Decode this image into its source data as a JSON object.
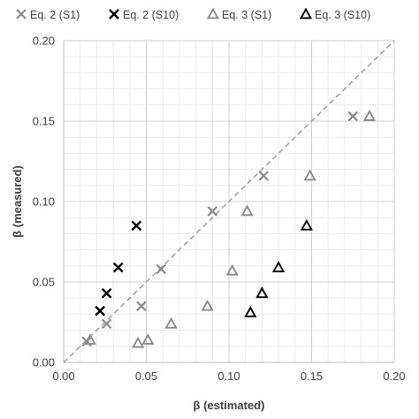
{
  "chart_data": {
    "type": "scatter",
    "xlabel": "β (estimated)",
    "ylabel": "β (measured)",
    "xlim": [
      0,
      0.2
    ],
    "ylim": [
      0,
      0.2
    ],
    "x_ticks": [
      "0.00",
      "0.05",
      "0.10",
      "0.15",
      "0.20"
    ],
    "y_ticks": [
      "0.00",
      "0.05",
      "0.10",
      "0.15",
      "0.20"
    ],
    "grid": true,
    "minor_grid": true,
    "legend_position": "top",
    "reference_line": "y = x (dashed)",
    "series": [
      {
        "name": "Eq. 2 (S1)",
        "marker": "x",
        "color": "#8c8c8c",
        "points": [
          [
            0.014,
            0.013
          ],
          [
            0.026,
            0.024
          ],
          [
            0.047,
            0.035
          ],
          [
            0.059,
            0.058
          ],
          [
            0.09,
            0.094
          ],
          [
            0.121,
            0.116
          ],
          [
            0.175,
            0.153
          ]
        ]
      },
      {
        "name": "Eq. 2 (S10)",
        "marker": "x",
        "color": "#000000",
        "points": [
          [
            0.022,
            0.032
          ],
          [
            0.026,
            0.043
          ],
          [
            0.033,
            0.059
          ],
          [
            0.044,
            0.085
          ]
        ]
      },
      {
        "name": "Eq. 3 (S1)",
        "marker": "triangle",
        "color": "#8c8c8c",
        "points": [
          [
            0.016,
            0.014
          ],
          [
            0.045,
            0.012
          ],
          [
            0.051,
            0.014
          ],
          [
            0.065,
            0.024
          ],
          [
            0.087,
            0.035
          ],
          [
            0.102,
            0.057
          ],
          [
            0.111,
            0.094
          ],
          [
            0.149,
            0.116
          ],
          [
            0.185,
            0.153
          ]
        ]
      },
      {
        "name": "Eq. 3 (S10)",
        "marker": "triangle",
        "color": "#000000",
        "points": [
          [
            0.113,
            0.031
          ],
          [
            0.12,
            0.043
          ],
          [
            0.13,
            0.059
          ],
          [
            0.147,
            0.085
          ]
        ]
      }
    ]
  }
}
